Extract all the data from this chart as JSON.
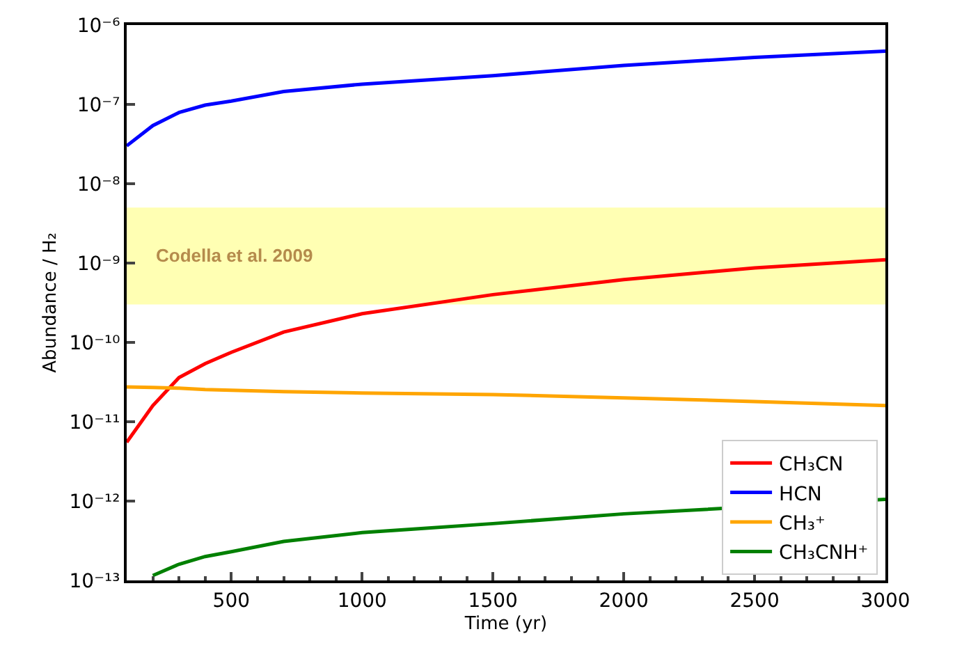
{
  "chart_data": {
    "type": "line",
    "xlabel": "Time (yr)",
    "ylabel": "Abundance / H₂",
    "log": "y",
    "xlim": [
      100,
      3000
    ],
    "xticks": [
      500,
      1000,
      1500,
      2000,
      2500,
      3000
    ],
    "ylim": [
      1e-13,
      1e-06
    ],
    "yticks": [
      {
        "value": 1e-13,
        "label": "10⁻¹³"
      },
      {
        "value": 1e-12,
        "label": "10⁻¹²"
      },
      {
        "value": 1e-11,
        "label": "10⁻¹¹"
      },
      {
        "value": 1e-10,
        "label": "10⁻¹⁰"
      },
      {
        "value": 1e-09,
        "label": "10⁻⁹"
      },
      {
        "value": 1e-08,
        "label": "10⁻⁸"
      },
      {
        "value": 1e-07,
        "label": "10⁻⁷"
      },
      {
        "value": 1e-06,
        "label": "10⁻⁶"
      }
    ],
    "x": [
      100,
      200,
      300,
      400,
      500,
      700,
      1000,
      1500,
      2000,
      2500,
      3000
    ],
    "series": [
      {
        "name": "CH₃CN",
        "color": "#ff0000",
        "values": [
          5.5e-12,
          1.6e-11,
          3.6e-11,
          5.4e-11,
          7.5e-11,
          1.35e-10,
          2.3e-10,
          4e-10,
          6.2e-10,
          8.7e-10,
          1.1e-09
        ]
      },
      {
        "name": "HCN",
        "color": "#0000ff",
        "values": [
          3e-08,
          5.4e-08,
          7.9e-08,
          9.8e-08,
          1.1e-07,
          1.45e-07,
          1.8e-07,
          2.3e-07,
          3.1e-07,
          3.9e-07,
          4.7e-07
        ]
      },
      {
        "name": "CH₃⁺",
        "color": "#ffa500",
        "values": [
          2.75e-11,
          2.7e-11,
          2.65e-11,
          2.55e-11,
          2.5e-11,
          2.4e-11,
          2.3e-11,
          2.2e-11,
          2e-11,
          1.8e-11,
          1.6e-11
        ]
      },
      {
        "name": "CH₃CNH⁺",
        "color": "#008000",
        "values": [
          null,
          1.15e-13,
          1.6e-13,
          2e-13,
          2.3e-13,
          3.1e-13,
          4e-13,
          5.2e-13,
          6.9e-13,
          null,
          1.05e-12
        ]
      }
    ],
    "bands": [
      {
        "axis": "y",
        "from": 3e-10,
        "to": 5e-09,
        "label": "Codella et al. 2009",
        "color": "#ffffb3"
      }
    ],
    "legend": "bottom right",
    "grid": false,
    "marker": "none",
    "line_style": "solid"
  }
}
